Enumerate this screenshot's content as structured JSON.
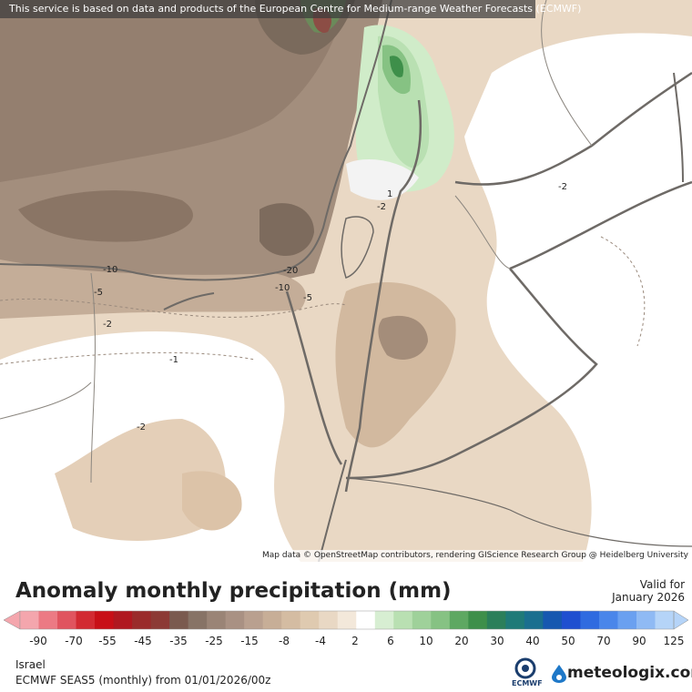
{
  "banner": "This service is based on data and products of the European Centre for Medium-range Weather Forecasts (ECMWF)",
  "attribution": "Map data © OpenStreetMap contributors, rendering GIScience Research Group @ Heidelberg University",
  "legend": {
    "title": "Anomaly monthly precipitation (mm)",
    "valid_label": "Valid for",
    "valid_date": "January 2026",
    "ticks": [
      "-90",
      "-70",
      "-55",
      "-45",
      "-35",
      "-25",
      "-15",
      "-8",
      "-4",
      "2",
      "6",
      "10",
      "20",
      "30",
      "40",
      "50",
      "70",
      "90",
      "125"
    ],
    "colors": [
      "#f4a6ad",
      "#ec7a84",
      "#e0545f",
      "#d22a32",
      "#c80f17",
      "#b01820",
      "#9a2b2b",
      "#8c3a35",
      "#7a5a4f",
      "#877366",
      "#9a8476",
      "#a99183",
      "#b9a08f",
      "#c7ae97",
      "#d4bca2",
      "#dfcab0",
      "#e9d8c4",
      "#f3e8da",
      "#ffffff",
      "#d7eed2",
      "#b9e0b2",
      "#9fd19a",
      "#86c283",
      "#5ea862",
      "#3e8f4a",
      "#2b7f5a",
      "#1f7a78",
      "#1a6f8f",
      "#1658b0",
      "#1f4fd0",
      "#2f6be0",
      "#4a86ea",
      "#6aa0f0",
      "#8fbaf4",
      "#b5d4f8"
    ],
    "region": "Israel",
    "model": "ECMWF SEAS5 (monthly) from 01/01/2026/00z"
  },
  "map": {
    "contour_labels": [
      "-10",
      "-5",
      "-2",
      "-1",
      "-2",
      "-20",
      "-10",
      "-5",
      "1",
      "-2",
      "-2"
    ],
    "colors": {
      "land_light": "#e9d8c4",
      "land_mid": "#d9c1a6",
      "dark_brown": "#8f7a69",
      "darker_brown": "#7d6b5d",
      "green_light": "#d0ecc9",
      "green_mid": "#9fd19a",
      "green_dark": "#5ea862",
      "border": "#6e6a66"
    }
  },
  "logos": {
    "ecmwf_text": "ECMWF",
    "meteologix_text": "meteologix.com"
  }
}
